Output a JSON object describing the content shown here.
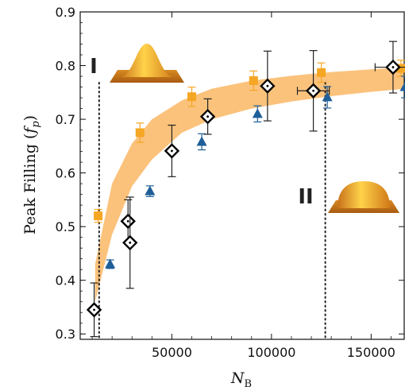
{
  "chart_data": {
    "type": "scatter",
    "title": "",
    "xlabel": "N_B",
    "ylabel": "Peak Filling (f_p)",
    "xlim": [
      4000,
      167000
    ],
    "ylim": [
      0.29,
      0.9
    ],
    "xticks": [
      50000,
      100000,
      150000
    ],
    "yticks": [
      0.3,
      0.4,
      0.5,
      0.6,
      0.7,
      0.8,
      0.9
    ],
    "grid": false,
    "legend": "none",
    "series": [
      {
        "marker": "square",
        "color": "#f5a623",
        "points": [
          {
            "x": 13000,
            "y": 0.52,
            "err": 0.012
          },
          {
            "x": 34000,
            "y": 0.675,
            "err": 0.018
          },
          {
            "x": 60000,
            "y": 0.742,
            "err": 0.018
          },
          {
            "x": 91000,
            "y": 0.772,
            "err": 0.018
          },
          {
            "x": 125000,
            "y": 0.787,
            "err": 0.018
          },
          {
            "x": 165000,
            "y": 0.795,
            "err": 0.015
          }
        ]
      },
      {
        "marker": "triangle",
        "color": "#1f5f99",
        "points": [
          {
            "x": 19000,
            "y": 0.43,
            "err": 0.008
          },
          {
            "x": 39000,
            "y": 0.566,
            "err": 0.01
          },
          {
            "x": 65000,
            "y": 0.658,
            "err": 0.015
          },
          {
            "x": 93000,
            "y": 0.71,
            "err": 0.015
          },
          {
            "x": 128000,
            "y": 0.741,
            "err": 0.02
          },
          {
            "x": 167000,
            "y": 0.76,
            "err": 0.02
          }
        ]
      },
      {
        "marker": "diamond",
        "color": "#000000",
        "points": [
          {
            "x": 11000,
            "y": 0.345,
            "err": 0.05
          },
          {
            "x": 28000,
            "y": 0.51,
            "err": 0.04
          },
          {
            "x": 29000,
            "y": 0.47,
            "err": 0.085
          },
          {
            "x": 50000,
            "y": 0.641,
            "err": 0.048
          },
          {
            "x": 68000,
            "y": 0.705,
            "err": 0.033
          },
          {
            "x": 98000,
            "y": 0.762,
            "err": 0.065
          },
          {
            "x": 121000,
            "y": 0.753,
            "err": 0.075,
            "xerr": 8000
          },
          {
            "x": 161000,
            "y": 0.797,
            "err": 0.048,
            "xerr": 9000
          }
        ]
      }
    ],
    "band": {
      "color": "#fbc27c",
      "x": [
        11500,
        20000,
        30000,
        40000,
        55000,
        70000,
        90000,
        110000,
        130000,
        150000,
        167000
      ],
      "upper": [
        0.43,
        0.58,
        0.655,
        0.7,
        0.735,
        0.757,
        0.772,
        0.781,
        0.788,
        0.793,
        0.797
      ],
      "lower": [
        0.36,
        0.485,
        0.575,
        0.625,
        0.675,
        0.7,
        0.72,
        0.733,
        0.743,
        0.751,
        0.757
      ]
    },
    "vlines": [
      {
        "x": 13500,
        "style": "dotted"
      },
      {
        "x": 127000,
        "style": "dotted"
      }
    ],
    "annotations": {
      "region_I": "I",
      "region_II": "II"
    },
    "insets": [
      {
        "name": "sharp-peak-profile-inset",
        "shape": "peaked"
      },
      {
        "name": "flat-top-profile-inset",
        "shape": "dome"
      }
    ]
  }
}
